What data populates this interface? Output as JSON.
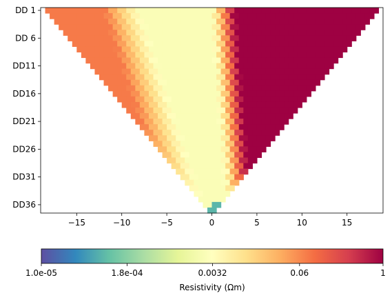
{
  "chart_data": {
    "type": "heatmap",
    "title": "",
    "xlabel": "",
    "ylabel": "",
    "x_ticks": [
      -15,
      -10,
      -5,
      0,
      5,
      10,
      15
    ],
    "x_tick_labels": [
      "−15",
      "−10",
      "−5",
      "0",
      "5",
      "10",
      "15"
    ],
    "xlim": [
      -19,
      19
    ],
    "y_tick_labels": [
      "DD 1",
      "DD 6",
      "DD11",
      "DD16",
      "DD21",
      "DD26",
      "DD31",
      "DD36"
    ],
    "y_tick_levels": [
      1,
      6,
      11,
      16,
      21,
      26,
      31,
      36
    ],
    "ylim": [
      0.5,
      37.5
    ],
    "n_levels": 37,
    "cell_width": 1,
    "pseudosection_apex_x": 0,
    "top_row_xlim": [
      -18.5,
      18.5
    ],
    "grid": false,
    "colormap": "Spectral_r",
    "color_scale": "log",
    "colorbar": {
      "orientation": "horizontal",
      "placement": "bottom",
      "label": "Resistivity (Ωm)",
      "range": [
        1e-05,
        1
      ],
      "ticks": [
        1e-05,
        0.00018,
        0.0032,
        0.06,
        1
      ],
      "tick_labels": [
        "1.0e-05",
        "1.8e-04",
        "0.0032",
        "0.06",
        "1"
      ]
    },
    "value_pattern": {
      "right_side_log10": 0,
      "conductive_band_center_log10": -2.6,
      "band_offset_at_top_row": -4,
      "band_offset_at_apex": 0.5,
      "band_half_width_at_top": 4,
      "band_half_width_at_apex": 1.2,
      "left_edge_log10": -1.1,
      "anomaly": {
        "x": [
          0.5,
          2.0
        ],
        "levels": [
          36,
          37
        ],
        "log10": -4.1
      }
    },
    "colormap_stops": [
      "#9e0142",
      "#d53e4f",
      "#f46d43",
      "#fdae61",
      "#fee08b",
      "#ffffbf",
      "#e6f598",
      "#abdda4",
      "#66c2a5",
      "#3288bd",
      "#5e4fa2"
    ]
  }
}
